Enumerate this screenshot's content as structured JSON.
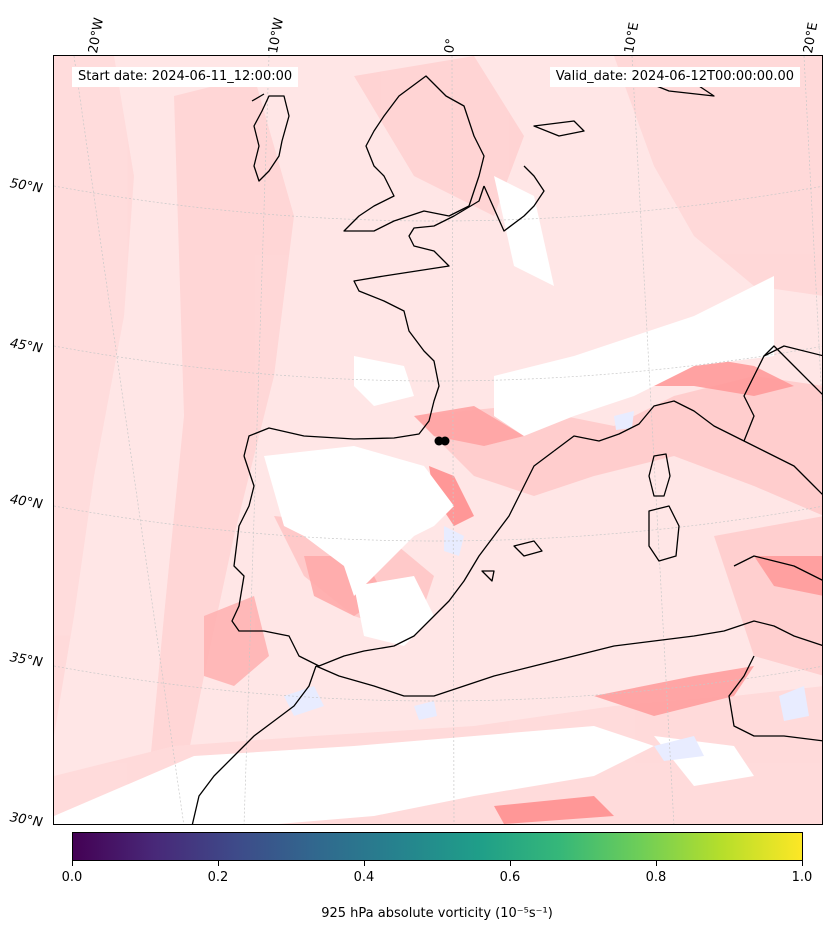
{
  "map": {
    "start_label": "Start date: 2024-06-11_12:00:00",
    "valid_label": "Valid_date: 2024-06-12T00:00:00.00",
    "lon_labels": [
      "20°W",
      "10°W",
      "0°",
      "10°E",
      "20°E"
    ],
    "lat_labels": [
      "50°N",
      "45°N",
      "40°N",
      "35°N",
      "30°N"
    ],
    "field": "925 hPa absolute vorticity",
    "colors": {
      "positive_light": "#ffe6e6",
      "positive_mid": "#ffc4c4",
      "positive_strong": "#ff8f8f",
      "negative_light": "#e8ecff",
      "coastline": "#000000",
      "gridline": "#c8c8c8"
    }
  },
  "colorbar": {
    "colormap": "viridis",
    "tick_labels": [
      "0.0",
      "0.2",
      "0.4",
      "0.6",
      "0.8",
      "1.0"
    ],
    "title": "925 hPa absolute vorticity (10⁻⁵s⁻¹)"
  }
}
